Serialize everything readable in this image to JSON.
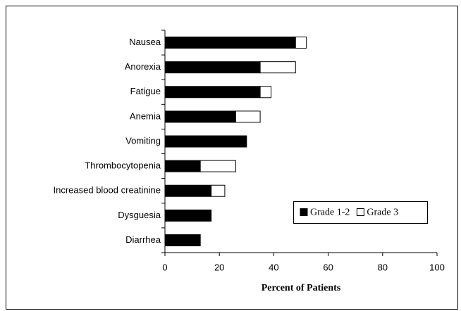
{
  "chart_data": {
    "type": "stacked_barh",
    "categories": [
      "Nausea",
      "Anorexia",
      "Fatigue",
      "Anemia",
      "Vomiting",
      "Thrombocytopenia",
      "Increased blood creatinine",
      "Dysguesia",
      "Diarrhea"
    ],
    "series": [
      {
        "name": "Grade 1-2",
        "color": "#000000",
        "values": [
          48,
          35,
          35,
          26,
          30,
          13,
          17,
          17,
          13
        ]
      },
      {
        "name": "Grade 3",
        "color": "#ffffff",
        "values": [
          4,
          13,
          4,
          9,
          0,
          13,
          5,
          0,
          0
        ]
      }
    ],
    "xlabel": "Percent of Patients",
    "xlim": [
      0,
      100
    ],
    "xticks": [
      0,
      20,
      40,
      60,
      80,
      100
    ],
    "legend": "lower right"
  }
}
